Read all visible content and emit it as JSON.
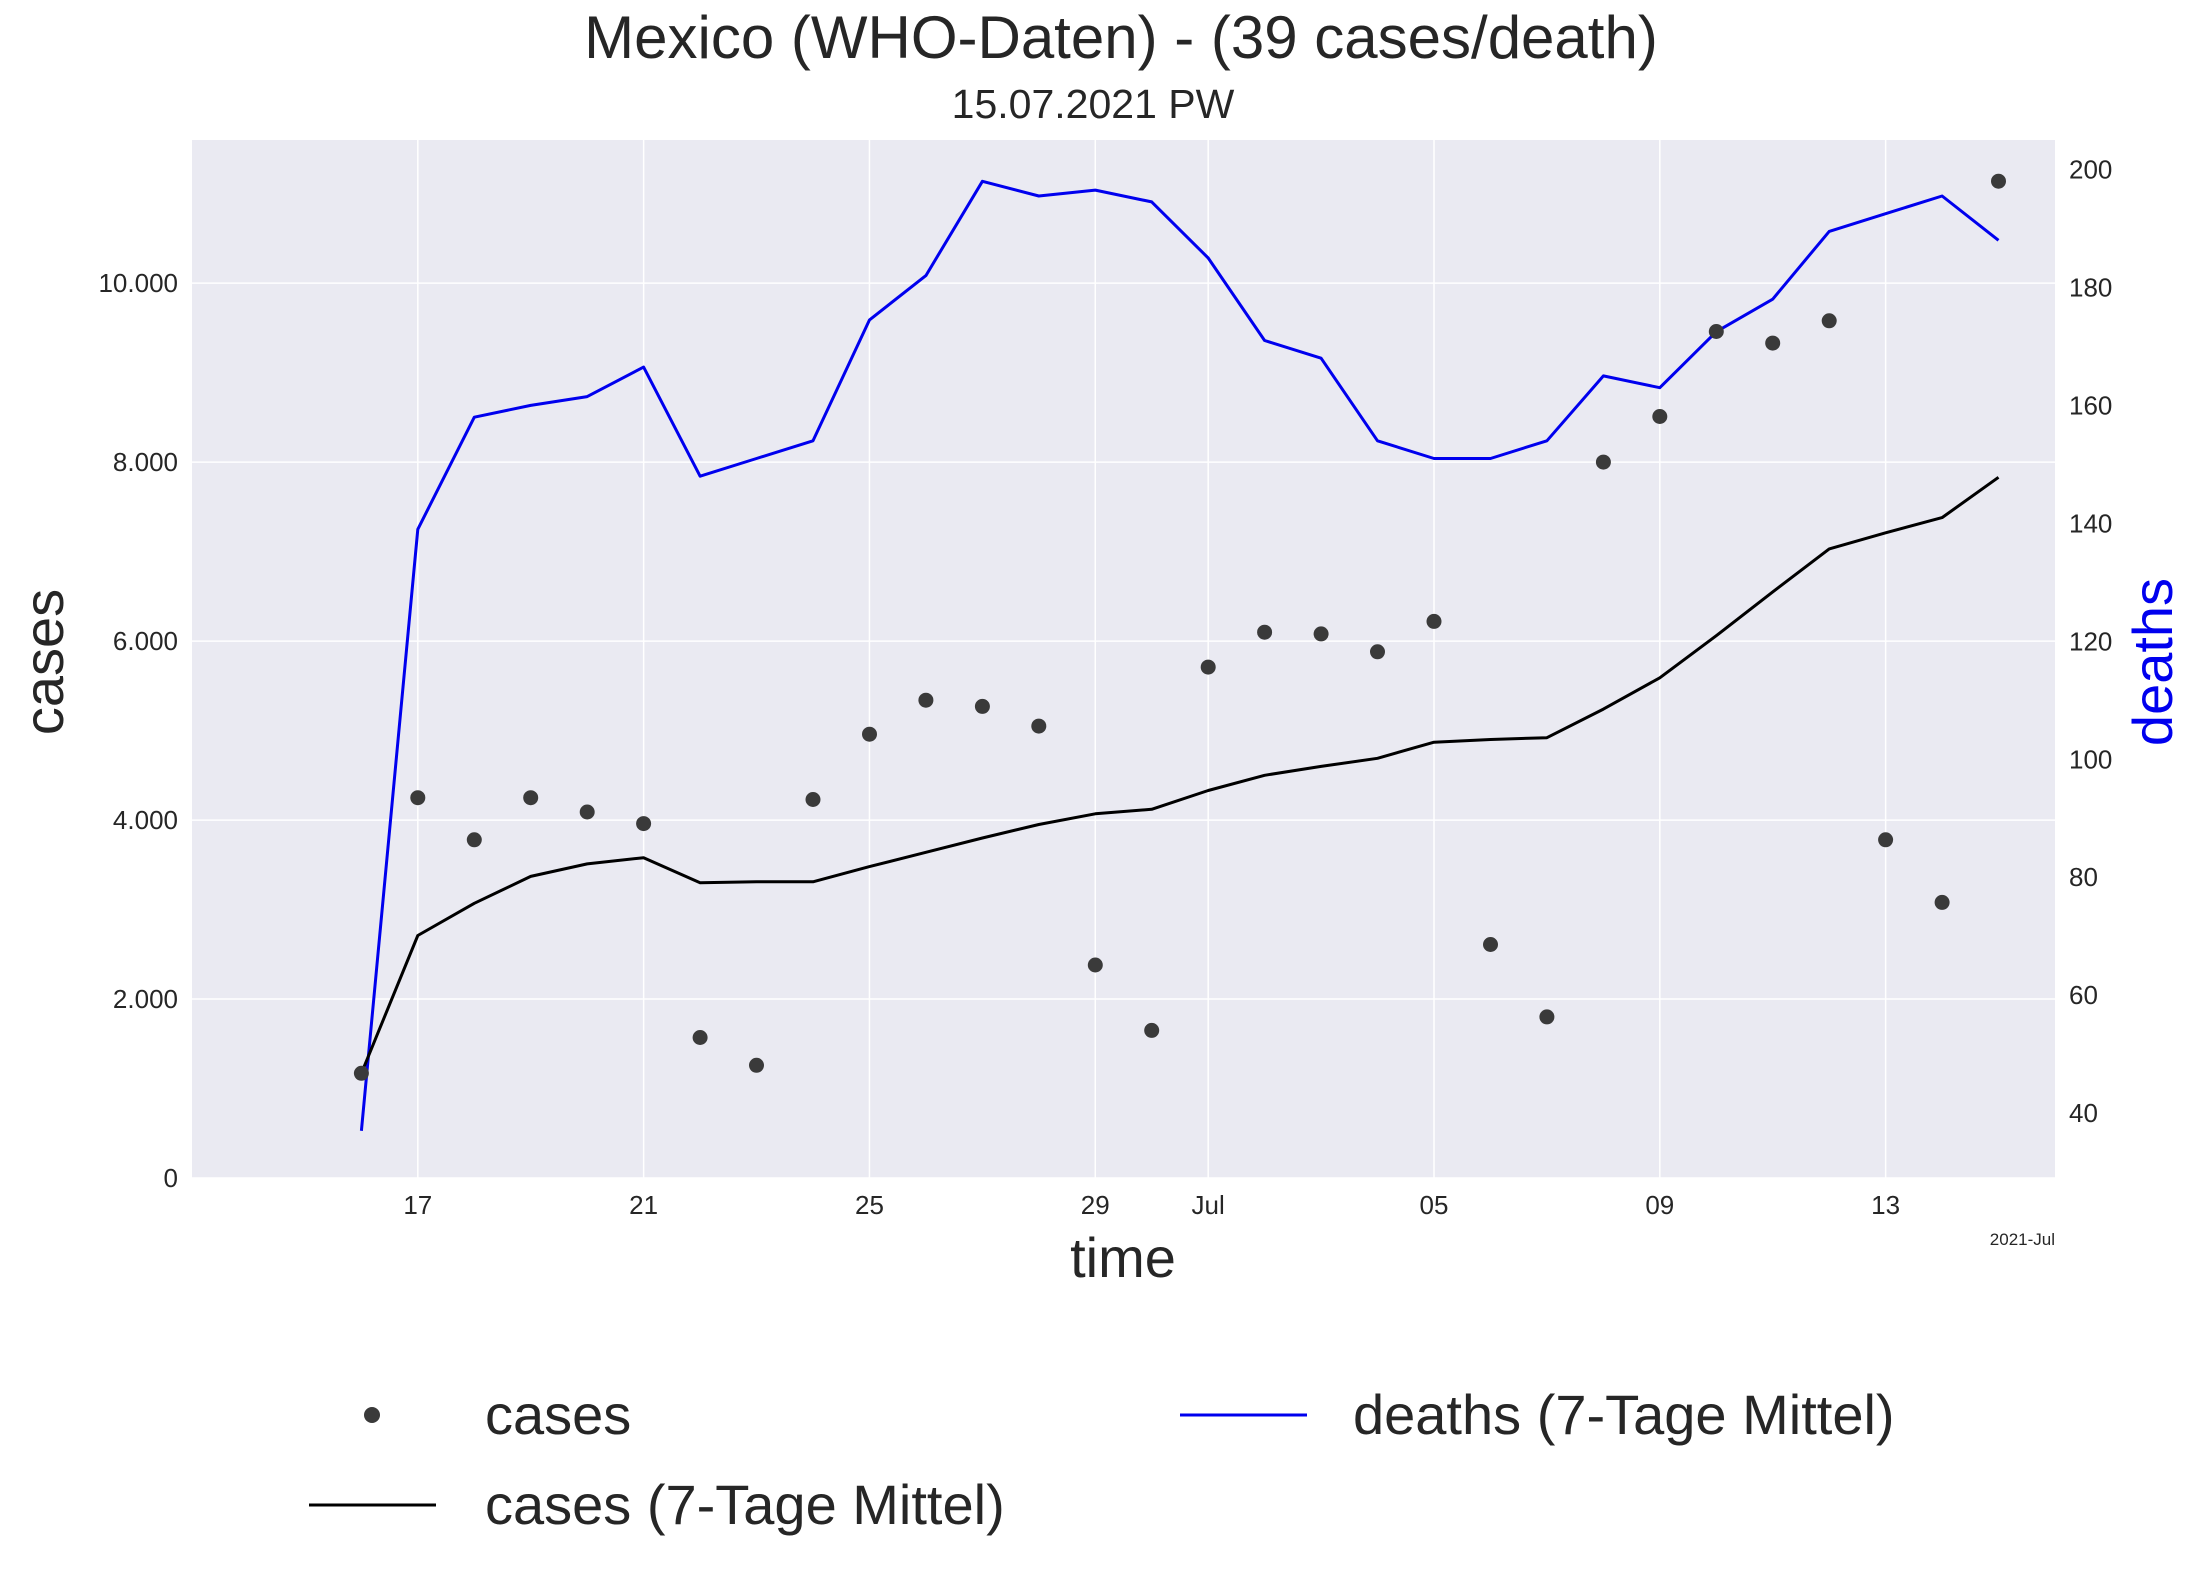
{
  "chart_data": {
    "type": "line",
    "title": "Mexico (WHO-Daten) - (39 cases/death)",
    "subtitle": "15.07.2021 PW",
    "xlabel": "time",
    "ylabel_left": "cases",
    "ylabel_right": "deaths",
    "x_offset_label": "2021-Jul",
    "x_dates": [
      "2021-06-16",
      "2021-06-17",
      "2021-06-18",
      "2021-06-19",
      "2021-06-20",
      "2021-06-21",
      "2021-06-22",
      "2021-06-23",
      "2021-06-24",
      "2021-06-25",
      "2021-06-26",
      "2021-06-27",
      "2021-06-28",
      "2021-06-29",
      "2021-06-30",
      "2021-07-01",
      "2021-07-02",
      "2021-07-03",
      "2021-07-04",
      "2021-07-05",
      "2021-07-06",
      "2021-07-07",
      "2021-07-08",
      "2021-07-09",
      "2021-07-10",
      "2021-07-11",
      "2021-07-12",
      "2021-07-13",
      "2021-07-14",
      "2021-07-15"
    ],
    "x_ticks": [
      {
        "date": "2021-06-17",
        "label": "17"
      },
      {
        "date": "2021-06-21",
        "label": "21"
      },
      {
        "date": "2021-06-25",
        "label": "25"
      },
      {
        "date": "2021-06-29",
        "label": "29"
      },
      {
        "date": "2021-07-01",
        "label": "Jul"
      },
      {
        "date": "2021-07-05",
        "label": "05"
      },
      {
        "date": "2021-07-09",
        "label": "09"
      },
      {
        "date": "2021-07-13",
        "label": "13"
      }
    ],
    "xlim": [
      "2021-06-13",
      "2021-07-16"
    ],
    "left_axis": {
      "ylim": [
        0,
        11600
      ],
      "ticks": [
        0,
        2000,
        4000,
        6000,
        8000,
        10000
      ],
      "tick_labels": [
        "0",
        "2.000",
        "4.000",
        "6.000",
        "8.000",
        "10.000"
      ]
    },
    "right_axis": {
      "ylim": [
        29,
        205
      ],
      "ticks": [
        40,
        60,
        80,
        100,
        120,
        140,
        160,
        180,
        200
      ],
      "tick_labels": [
        "40",
        "60",
        "80",
        "100",
        "120",
        "140",
        "160",
        "180",
        "200"
      ]
    },
    "grid": true,
    "series": [
      {
        "name": "cases",
        "kind": "scatter",
        "axis": "left",
        "color": "#3a3a3a",
        "values": [
          1170,
          4250,
          3780,
          4250,
          4090,
          3960,
          1570,
          1260,
          4230,
          4960,
          5340,
          5270,
          5050,
          2380,
          1650,
          5710,
          6100,
          6080,
          5880,
          6220,
          2610,
          1800,
          8000,
          8510,
          9460,
          9330,
          9580,
          3780,
          3080,
          11140
        ]
      },
      {
        "name": "cases (7-Tage Mittel)",
        "kind": "line",
        "axis": "left",
        "color": "#000000",
        "values": [
          1170,
          2710,
          3070,
          3370,
          3510,
          3580,
          3300,
          3310,
          3310,
          3480,
          3640,
          3800,
          3950,
          4070,
          4120,
          4330,
          4500,
          4600,
          4690,
          4870,
          4900,
          4920,
          5240,
          5590,
          6060,
          6550,
          7030,
          7210,
          7380,
          7830
        ]
      },
      {
        "name": "deaths (7-Tage Mittel)",
        "kind": "line",
        "axis": "right",
        "color": "#0000ee",
        "values": [
          37,
          139,
          158,
          160,
          161.5,
          166.5,
          148,
          151,
          154,
          174.5,
          182,
          198,
          195.5,
          196.5,
          194.5,
          185,
          171,
          168,
          154,
          151,
          151,
          154,
          165,
          163,
          172.5,
          178,
          189.5,
          192.5,
          195.5,
          188
        ]
      }
    ],
    "legend": {
      "placement": "below plot",
      "entries": [
        "cases",
        "deaths (7-Tage Mittel)",
        "cases (7-Tage Mittel)"
      ]
    },
    "colors": {
      "plot_bg": "#eaeaf2",
      "grid": "#ffffff",
      "deaths_axis_label": "#0000ee"
    }
  }
}
